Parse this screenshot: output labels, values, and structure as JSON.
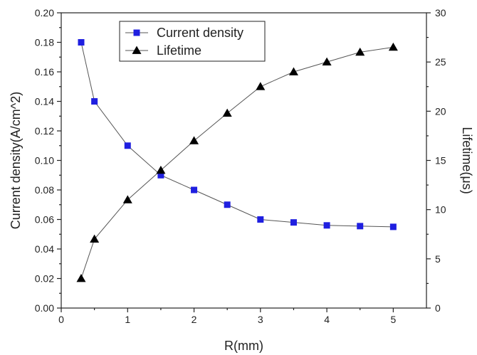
{
  "chart_data": {
    "type": "line",
    "xlabel": "R(mm)",
    "ylabel_left": "Current density(A/cm^2)",
    "ylabel_right": "Lifetime(μs)",
    "xlim": [
      0,
      5.5
    ],
    "ylim_left": [
      0,
      0.2
    ],
    "ylim_right": [
      0,
      30
    ],
    "x_ticks": [
      "0",
      "1",
      "2",
      "3",
      "4",
      "5"
    ],
    "y_left_ticks": [
      "0.00",
      "0.02",
      "0.04",
      "0.06",
      "0.08",
      "0.10",
      "0.12",
      "0.14",
      "0.16",
      "0.18",
      "0.20"
    ],
    "y_right_ticks": [
      "0",
      "5",
      "10",
      "15",
      "20",
      "25",
      "30"
    ],
    "grid": false,
    "legend_position": "top-center",
    "series": [
      {
        "name": "Current density",
        "axis": "left",
        "marker": "square",
        "color": "#1f1fe0",
        "x": [
          0.3,
          0.5,
          1,
          1.5,
          2,
          2.5,
          3,
          3.5,
          4,
          4.5,
          5
        ],
        "values": [
          0.18,
          0.14,
          0.11,
          0.09,
          0.08,
          0.07,
          0.06,
          0.058,
          0.056,
          0.0555,
          0.055
        ]
      },
      {
        "name": "Lifetime",
        "axis": "right",
        "marker": "triangle",
        "color": "#000000",
        "x": [
          0.3,
          0.5,
          1,
          1.5,
          2,
          2.5,
          3,
          3.5,
          4,
          4.5,
          5
        ],
        "values": [
          3,
          7,
          11,
          14,
          17,
          19.8,
          22.5,
          24,
          25,
          26,
          26.5
        ]
      }
    ]
  }
}
